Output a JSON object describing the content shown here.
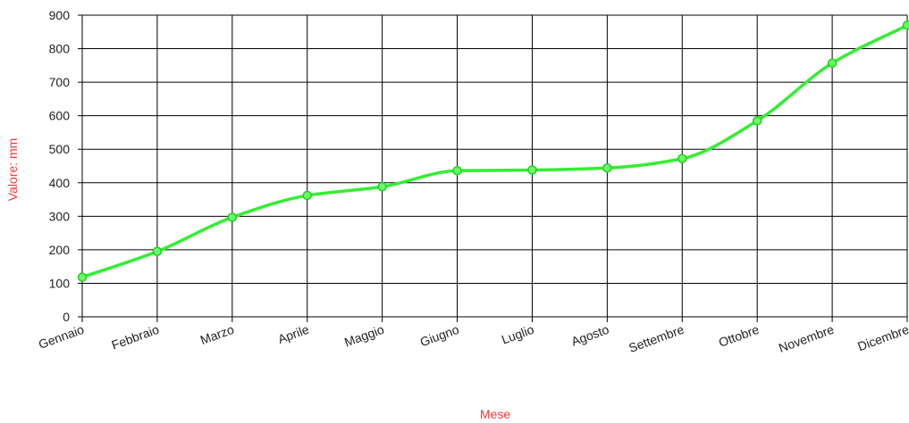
{
  "chart_data": {
    "type": "line",
    "title": "",
    "xlabel": "Mese",
    "ylabel": "Valore: mm",
    "categories": [
      "Gennaio",
      "Febbraio",
      "Marzo",
      "Aprile",
      "Maggio",
      "Giugno",
      "Luglio",
      "Agosto",
      "Settembre",
      "Ottobre",
      "Novembre",
      "Dicembre"
    ],
    "series": [
      {
        "values": [
          118,
          195,
          297,
          362,
          388,
          436,
          438,
          444,
          472,
          585,
          757,
          870
        ]
      }
    ],
    "ylim": [
      0,
      900
    ],
    "yticks": [
      0,
      100,
      200,
      300,
      400,
      500,
      600,
      700,
      800,
      900
    ],
    "grid": true,
    "legend": "none",
    "colors": {
      "line": "#33ee33",
      "marker_fill": "#66ff66",
      "marker_stroke": "#22cc22",
      "axis_title": "#ff3333",
      "grid": "#000000",
      "text": "#222222"
    }
  }
}
